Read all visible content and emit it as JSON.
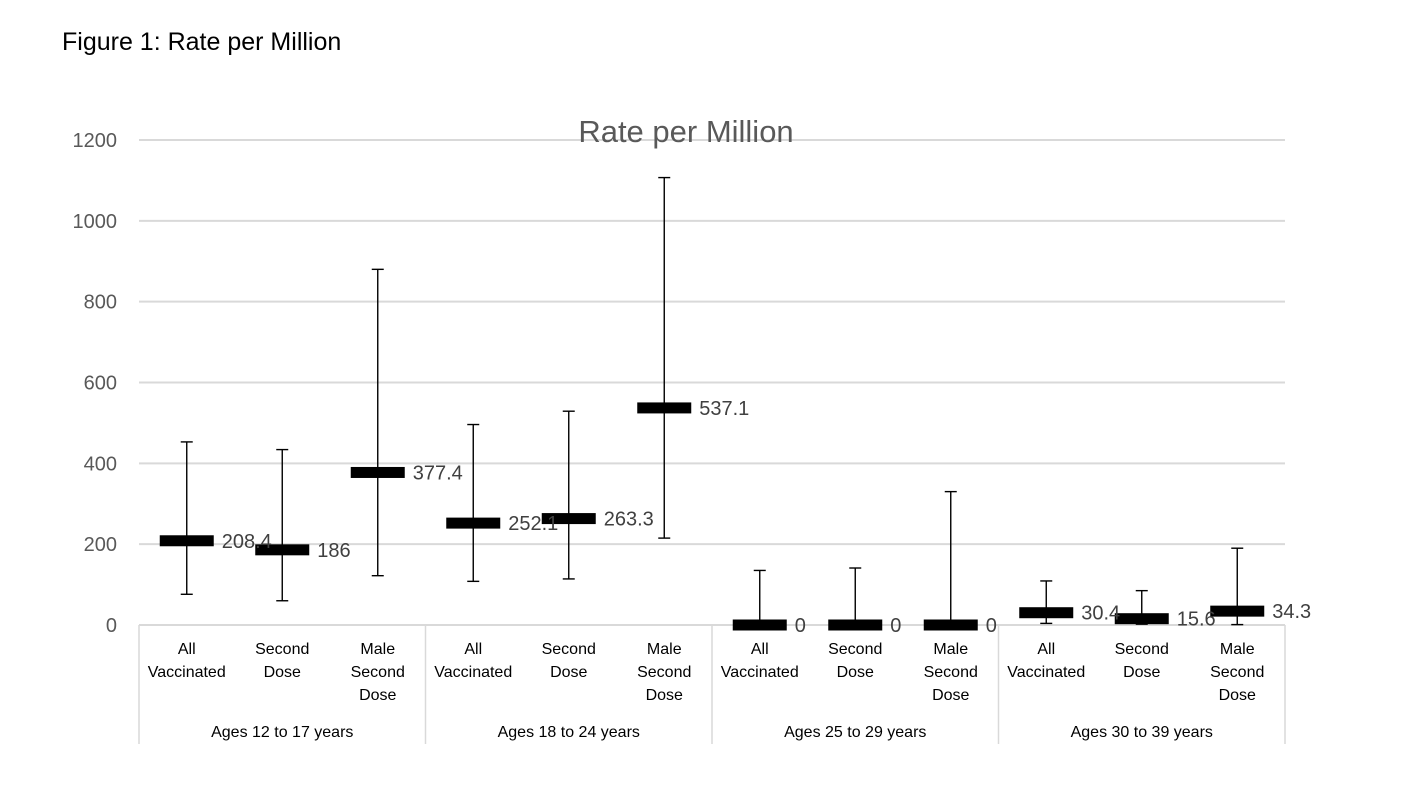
{
  "figure_caption": "Figure 1: Rate per Million",
  "chart_data": {
    "type": "error-bar",
    "title": "Rate per Million",
    "xlabel": "",
    "ylabel": "",
    "ylim": [
      0,
      1200
    ],
    "yticks": [
      0,
      200,
      400,
      600,
      800,
      1000,
      1200
    ],
    "grid": true,
    "legend": "none",
    "colors": {
      "marker": "#000000",
      "grid": "#d9d9d9",
      "axis_text": "#595959",
      "title": "#595959",
      "label": "#404040"
    },
    "groups": [
      {
        "name": "Ages 12 to 17 years",
        "categories": [
          {
            "label": [
              "All",
              "Vaccinated"
            ],
            "value": 208.4,
            "value_label": "208.4",
            "low": 76,
            "high": 453
          },
          {
            "label": [
              "Second",
              "Dose"
            ],
            "value": 186,
            "value_label": "186",
            "low": 60,
            "high": 434
          },
          {
            "label": [
              "Male",
              "Second",
              "Dose"
            ],
            "value": 377.4,
            "value_label": "377.4",
            "low": 122,
            "high": 880
          }
        ]
      },
      {
        "name": "Ages 18 to 24 years",
        "categories": [
          {
            "label": [
              "All",
              "Vaccinated"
            ],
            "value": 252.1,
            "value_label": "252.1",
            "low": 108,
            "high": 496
          },
          {
            "label": [
              "Second",
              "Dose"
            ],
            "value": 263.3,
            "value_label": "263.3",
            "low": 114,
            "high": 529
          },
          {
            "label": [
              "Male",
              "Second",
              "Dose"
            ],
            "value": 537.1,
            "value_label": "537.1",
            "low": 215,
            "high": 1107
          }
        ]
      },
      {
        "name": "Ages 25 to 29 years",
        "categories": [
          {
            "label": [
              "All",
              "Vaccinated"
            ],
            "value": 0,
            "value_label": "0",
            "low": 0,
            "high": 135
          },
          {
            "label": [
              "Second",
              "Dose"
            ],
            "value": 0,
            "value_label": "0",
            "low": 0,
            "high": 141
          },
          {
            "label": [
              "Male",
              "Second",
              "Dose"
            ],
            "value": 0,
            "value_label": "0",
            "low": 0,
            "high": 330
          }
        ]
      },
      {
        "name": "Ages 30 to 39 years",
        "categories": [
          {
            "label": [
              "All",
              "Vaccinated"
            ],
            "value": 30.4,
            "value_label": "30.4",
            "low": 4,
            "high": 109
          },
          {
            "label": [
              "Second",
              "Dose"
            ],
            "value": 15.6,
            "value_label": "15.6",
            "low": 2,
            "high": 85
          },
          {
            "label": [
              "Male",
              "Second",
              "Dose"
            ],
            "value": 34.3,
            "value_label": "34.3",
            "low": 1,
            "high": 190
          }
        ]
      }
    ]
  }
}
